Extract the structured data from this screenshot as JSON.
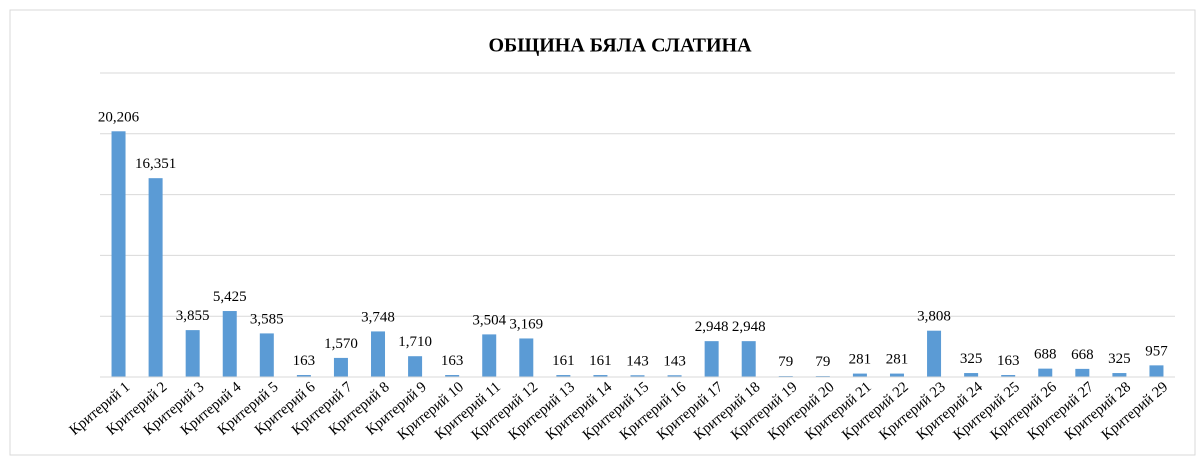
{
  "chart_data": {
    "type": "bar",
    "title": "ОБЩИНА БЯЛА СЛАТИНА",
    "categories": [
      "Критерий 1",
      "Критерий 2",
      "Критерий 3",
      "Критерий 4",
      "Критерий 5",
      "Критерий 6",
      "Критерий 7",
      "Критерий 8",
      "Критерий 9",
      "Критерий 10",
      "Критерий 11",
      "Критерий 12",
      "Критерий 13",
      "Критерий 14",
      "Критерий 15",
      "Критерий 16",
      "Критерий 17",
      "Критерий 18",
      "Критерий 19",
      "Критерий 20",
      "Критерий 21",
      "Критерий 22",
      "Критерий 23",
      "Критерий 24",
      "Критерий 25",
      "Критерий 26",
      "Критерий 27",
      "Критерий 28",
      "Критерий 29"
    ],
    "values": [
      20206,
      16351,
      3855,
      5425,
      3585,
      163,
      1570,
      3748,
      1710,
      163,
      3504,
      3169,
      161,
      161,
      143,
      143,
      2948,
      2948,
      79,
      79,
      281,
      281,
      3808,
      325,
      163,
      688,
      668,
      325,
      957
    ],
    "value_labels": [
      "20,206",
      "16,351",
      "3,855",
      "5,425",
      "3,585",
      "163",
      "1,570",
      "3,748",
      "1,710",
      "163",
      "3,504",
      "3,169",
      "161",
      "161",
      "143",
      "143",
      "2,948",
      "2,948",
      "79",
      "79",
      "281",
      "281",
      "3,808",
      "325",
      "163",
      "688",
      "668",
      "325",
      "957"
    ],
    "color": "#5b9bd5",
    "ylim": [
      0,
      25000
    ],
    "yticks": [
      0,
      5000,
      10000,
      15000,
      20000,
      25000
    ],
    "grid": true
  }
}
